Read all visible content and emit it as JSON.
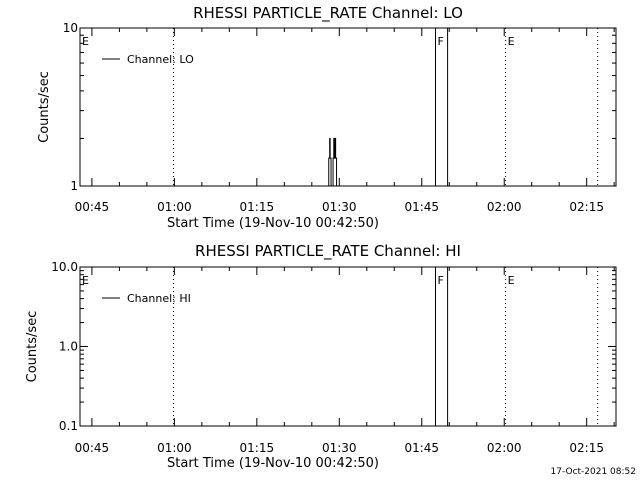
{
  "footer": {
    "timestamp": "17-Oct-2021 08:52"
  },
  "chart_data": [
    {
      "type": "line",
      "title": "RHESSI PARTICLE_RATE Channel: LO",
      "xlabel": "Start Time (19-Nov-10 00:42:50)",
      "ylabel": "Counts/sec",
      "yscale": "log",
      "xlim": [
        0,
        5850
      ],
      "ylim": [
        1,
        10
      ],
      "x_ticks": [
        {
          "t": 130,
          "label": "00:45"
        },
        {
          "t": 1030,
          "label": "01:00"
        },
        {
          "t": 1930,
          "label": "01:15"
        },
        {
          "t": 2830,
          "label": "01:30"
        },
        {
          "t": 3730,
          "label": "01:45"
        },
        {
          "t": 4630,
          "label": "02:00"
        },
        {
          "t": 5530,
          "label": "02:15"
        }
      ],
      "y_ticks": [
        {
          "v": 1,
          "label": "1"
        },
        {
          "v": 10,
          "label": "10"
        }
      ],
      "legend": {
        "label": "Channel: LO",
        "position": "top-left"
      },
      "series": [
        {
          "name": "Channel: LO",
          "x": [
            2700,
            2710,
            2715,
            2725,
            2730,
            2740,
            2745,
            2755,
            2762,
            2770,
            2778,
            2786,
            2790,
            2800,
            2810
          ],
          "values": [
            1,
            1,
            1.5,
            2,
            1.5,
            1,
            1,
            1,
            1.5,
            2,
            1.5,
            2,
            1.5,
            1,
            1
          ]
        }
      ],
      "markers": [
        {
          "t": 0,
          "letter": "E",
          "style": "dotted"
        },
        {
          "t": 1020,
          "letter": "",
          "style": "dotted"
        },
        {
          "t": 3880,
          "letter": "F",
          "style": "solid"
        },
        {
          "t": 4012,
          "letter": "",
          "style": "solid"
        },
        {
          "t": 4645,
          "letter": "E",
          "style": "dotted"
        },
        {
          "t": 5650,
          "letter": "",
          "style": "dotted"
        }
      ]
    },
    {
      "type": "line",
      "title": "RHESSI PARTICLE_RATE Channel: HI",
      "xlabel": "Start Time (19-Nov-10 00:42:50)",
      "ylabel": "Counts/sec",
      "yscale": "log",
      "xlim": [
        0,
        5850
      ],
      "ylim": [
        0.1,
        10
      ],
      "x_ticks": [
        {
          "t": 130,
          "label": "00:45"
        },
        {
          "t": 1030,
          "label": "01:00"
        },
        {
          "t": 1930,
          "label": "01:15"
        },
        {
          "t": 2830,
          "label": "01:30"
        },
        {
          "t": 3730,
          "label": "01:45"
        },
        {
          "t": 4630,
          "label": "02:00"
        },
        {
          "t": 5530,
          "label": "02:15"
        }
      ],
      "y_ticks": [
        {
          "v": 0.1,
          "label": "0.1"
        },
        {
          "v": 1,
          "label": "1.0"
        },
        {
          "v": 10,
          "label": "10.0"
        }
      ],
      "legend": {
        "label": "Channel: HI",
        "position": "top-left"
      },
      "series": [
        {
          "name": "Channel: HI",
          "x": [],
          "values": []
        }
      ],
      "markers": [
        {
          "t": 0,
          "letter": "E",
          "style": "dotted"
        },
        {
          "t": 1020,
          "letter": "",
          "style": "dotted"
        },
        {
          "t": 3880,
          "letter": "F",
          "style": "solid"
        },
        {
          "t": 4012,
          "letter": "",
          "style": "solid"
        },
        {
          "t": 4645,
          "letter": "E",
          "style": "dotted"
        },
        {
          "t": 5650,
          "letter": "",
          "style": "dotted"
        }
      ]
    }
  ]
}
